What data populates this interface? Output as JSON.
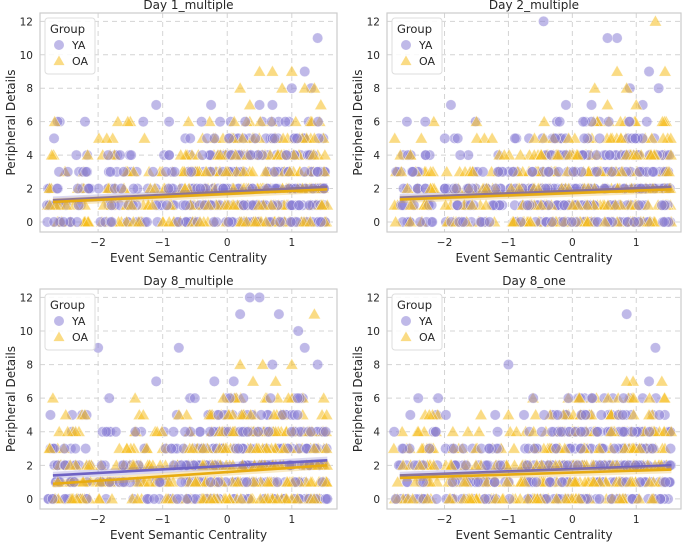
{
  "colors": {
    "YA": "#8a80d6",
    "OA": "#f5bd1f",
    "YA_line": "#6f63c4",
    "OA_line": "#e8ac12",
    "grid": "#d4d4d4",
    "frame": "#cccccc"
  },
  "chart_data": [
    {
      "type": "scatter",
      "title": "Day 1_multiple",
      "xlabel": "Event Semantic Centrality",
      "ylabel": "Peripheral Details",
      "xlim": [
        -2.9,
        1.7
      ],
      "ylim": [
        -0.6,
        12.5
      ],
      "xticks": [
        -2,
        -1,
        0,
        1
      ],
      "yticks": [
        0,
        2,
        4,
        6,
        8,
        10,
        12
      ],
      "legend": {
        "title": "Group",
        "entries": [
          "YA",
          "OA"
        ],
        "position": "top-left"
      },
      "series": [
        {
          "name": "YA",
          "marker": "circle",
          "fit": [
            [
              -2.7,
              1.3
            ],
            [
              1.55,
              2.1
            ]
          ],
          "outliers": [
            [
              -1.1,
              7
            ],
            [
              -0.25,
              7
            ],
            [
              0.5,
              7
            ],
            [
              0.7,
              7
            ],
            [
              1.0,
              8
            ],
            [
              1.2,
              9
            ],
            [
              1.3,
              8
            ],
            [
              1.4,
              11
            ],
            [
              0.9,
              6
            ],
            [
              -0.2,
              5
            ],
            [
              -1.3,
              6
            ],
            [
              -0.9,
              6
            ]
          ]
        },
        {
          "name": "OA",
          "marker": "triangle",
          "fit": [
            [
              -2.7,
              1.2
            ],
            [
              1.55,
              1.95
            ]
          ],
          "outliers": [
            [
              0.2,
              8
            ],
            [
              0.35,
              7
            ],
            [
              0.5,
              9
            ],
            [
              0.7,
              9
            ],
            [
              0.85,
              8
            ],
            [
              1.0,
              9
            ],
            [
              1.2,
              8
            ],
            [
              1.35,
              8
            ],
            [
              1.45,
              7
            ],
            [
              -0.6,
              6
            ],
            [
              0.3,
              6
            ]
          ]
        }
      ]
    },
    {
      "type": "scatter",
      "title": "Day 2_multiple",
      "xlabel": "Event Semantic Centrality",
      "ylabel": "Peripheral Details",
      "xlim": [
        -2.9,
        1.7
      ],
      "ylim": [
        -0.6,
        12.5
      ],
      "xticks": [
        -2,
        -1,
        0,
        1
      ],
      "yticks": [
        0,
        2,
        4,
        6,
        8,
        10,
        12
      ],
      "legend": {
        "title": "Group",
        "entries": [
          "YA",
          "OA"
        ],
        "position": "top-left"
      },
      "series": [
        {
          "name": "YA",
          "marker": "circle",
          "fit": [
            [
              -2.7,
              1.45
            ],
            [
              1.55,
              2.1
            ]
          ],
          "outliers": [
            [
              -0.45,
              12
            ],
            [
              0.55,
              11
            ],
            [
              0.7,
              11
            ],
            [
              0.9,
              8
            ],
            [
              1.2,
              9
            ],
            [
              1.35,
              8
            ],
            [
              -1.9,
              7
            ],
            [
              -0.1,
              7
            ],
            [
              0.3,
              7
            ],
            [
              1.1,
              7
            ]
          ]
        },
        {
          "name": "OA",
          "marker": "triangle",
          "fit": [
            [
              -2.7,
              1.35
            ],
            [
              1.55,
              1.95
            ]
          ],
          "outliers": [
            [
              1.3,
              12
            ],
            [
              1.45,
              9
            ],
            [
              0.7,
              9
            ],
            [
              0.85,
              8
            ],
            [
              0.35,
              8
            ],
            [
              1.0,
              7
            ],
            [
              -1.5,
              6
            ],
            [
              0.55,
              7
            ]
          ]
        }
      ]
    },
    {
      "type": "scatter",
      "title": "Day 8_multiple",
      "xlabel": "Event Semantic Centrality",
      "ylabel": "Peripheral Details",
      "xlim": [
        -2.9,
        1.7
      ],
      "ylim": [
        -0.6,
        12.5
      ],
      "xticks": [
        -2,
        -1,
        0,
        1
      ],
      "yticks": [
        0,
        2,
        4,
        6,
        8,
        10,
        12
      ],
      "legend": {
        "title": "Group",
        "entries": [
          "YA",
          "OA"
        ],
        "position": "top-left"
      },
      "series": [
        {
          "name": "YA",
          "marker": "circle",
          "fit": [
            [
              -2.7,
              1.4
            ],
            [
              1.55,
              2.3
            ]
          ],
          "outliers": [
            [
              0.35,
              12
            ],
            [
              0.5,
              12
            ],
            [
              0.2,
              11
            ],
            [
              0.8,
              11
            ],
            [
              1.1,
              10
            ],
            [
              1.2,
              9
            ],
            [
              1.4,
              8
            ],
            [
              -2.0,
              9
            ],
            [
              -0.75,
              9
            ],
            [
              -1.1,
              7
            ],
            [
              0.7,
              8
            ],
            [
              -0.2,
              7
            ],
            [
              0.1,
              7
            ]
          ]
        },
        {
          "name": "OA",
          "marker": "triangle",
          "fit": [
            [
              -2.7,
              0.9
            ],
            [
              1.55,
              2.0
            ]
          ],
          "outliers": [
            [
              1.35,
              11
            ],
            [
              -2.7,
              6
            ],
            [
              0.2,
              8
            ],
            [
              0.55,
              8
            ],
            [
              0.75,
              7
            ],
            [
              1.0,
              8
            ],
            [
              -1.3,
              5
            ],
            [
              0.4,
              7
            ]
          ]
        }
      ]
    },
    {
      "type": "scatter",
      "title": "Day 8_one",
      "xlabel": "Event Semantic Centrality",
      "ylabel": "Peripheral Details",
      "xlim": [
        -2.9,
        1.7
      ],
      "ylim": [
        -0.6,
        12.5
      ],
      "xticks": [
        -2,
        -1,
        0,
        1
      ],
      "yticks": [
        0,
        2,
        4,
        6,
        8,
        10,
        12
      ],
      "legend": {
        "title": "Group",
        "entries": [
          "YA",
          "OA"
        ],
        "position": "top-left"
      },
      "series": [
        {
          "name": "YA",
          "marker": "circle",
          "fit": [
            [
              -2.7,
              1.4
            ],
            [
              1.55,
              2.0
            ]
          ],
          "outliers": [
            [
              0.85,
              11
            ],
            [
              1.3,
              9
            ],
            [
              -1.0,
              8
            ],
            [
              -2.1,
              6
            ],
            [
              0.5,
              6
            ],
            [
              0.8,
              6
            ],
            [
              1.2,
              7
            ],
            [
              -0.1,
              5
            ],
            [
              0.2,
              5
            ]
          ]
        },
        {
          "name": "OA",
          "marker": "triangle",
          "fit": [
            [
              -2.7,
              1.25
            ],
            [
              1.55,
              1.75
            ]
          ],
          "outliers": [
            [
              0.85,
              7
            ],
            [
              0.95,
              7
            ],
            [
              1.4,
              7
            ],
            [
              0.1,
              6
            ],
            [
              0.3,
              6
            ],
            [
              -1.0,
              5
            ],
            [
              1.2,
              5
            ]
          ]
        }
      ]
    }
  ]
}
